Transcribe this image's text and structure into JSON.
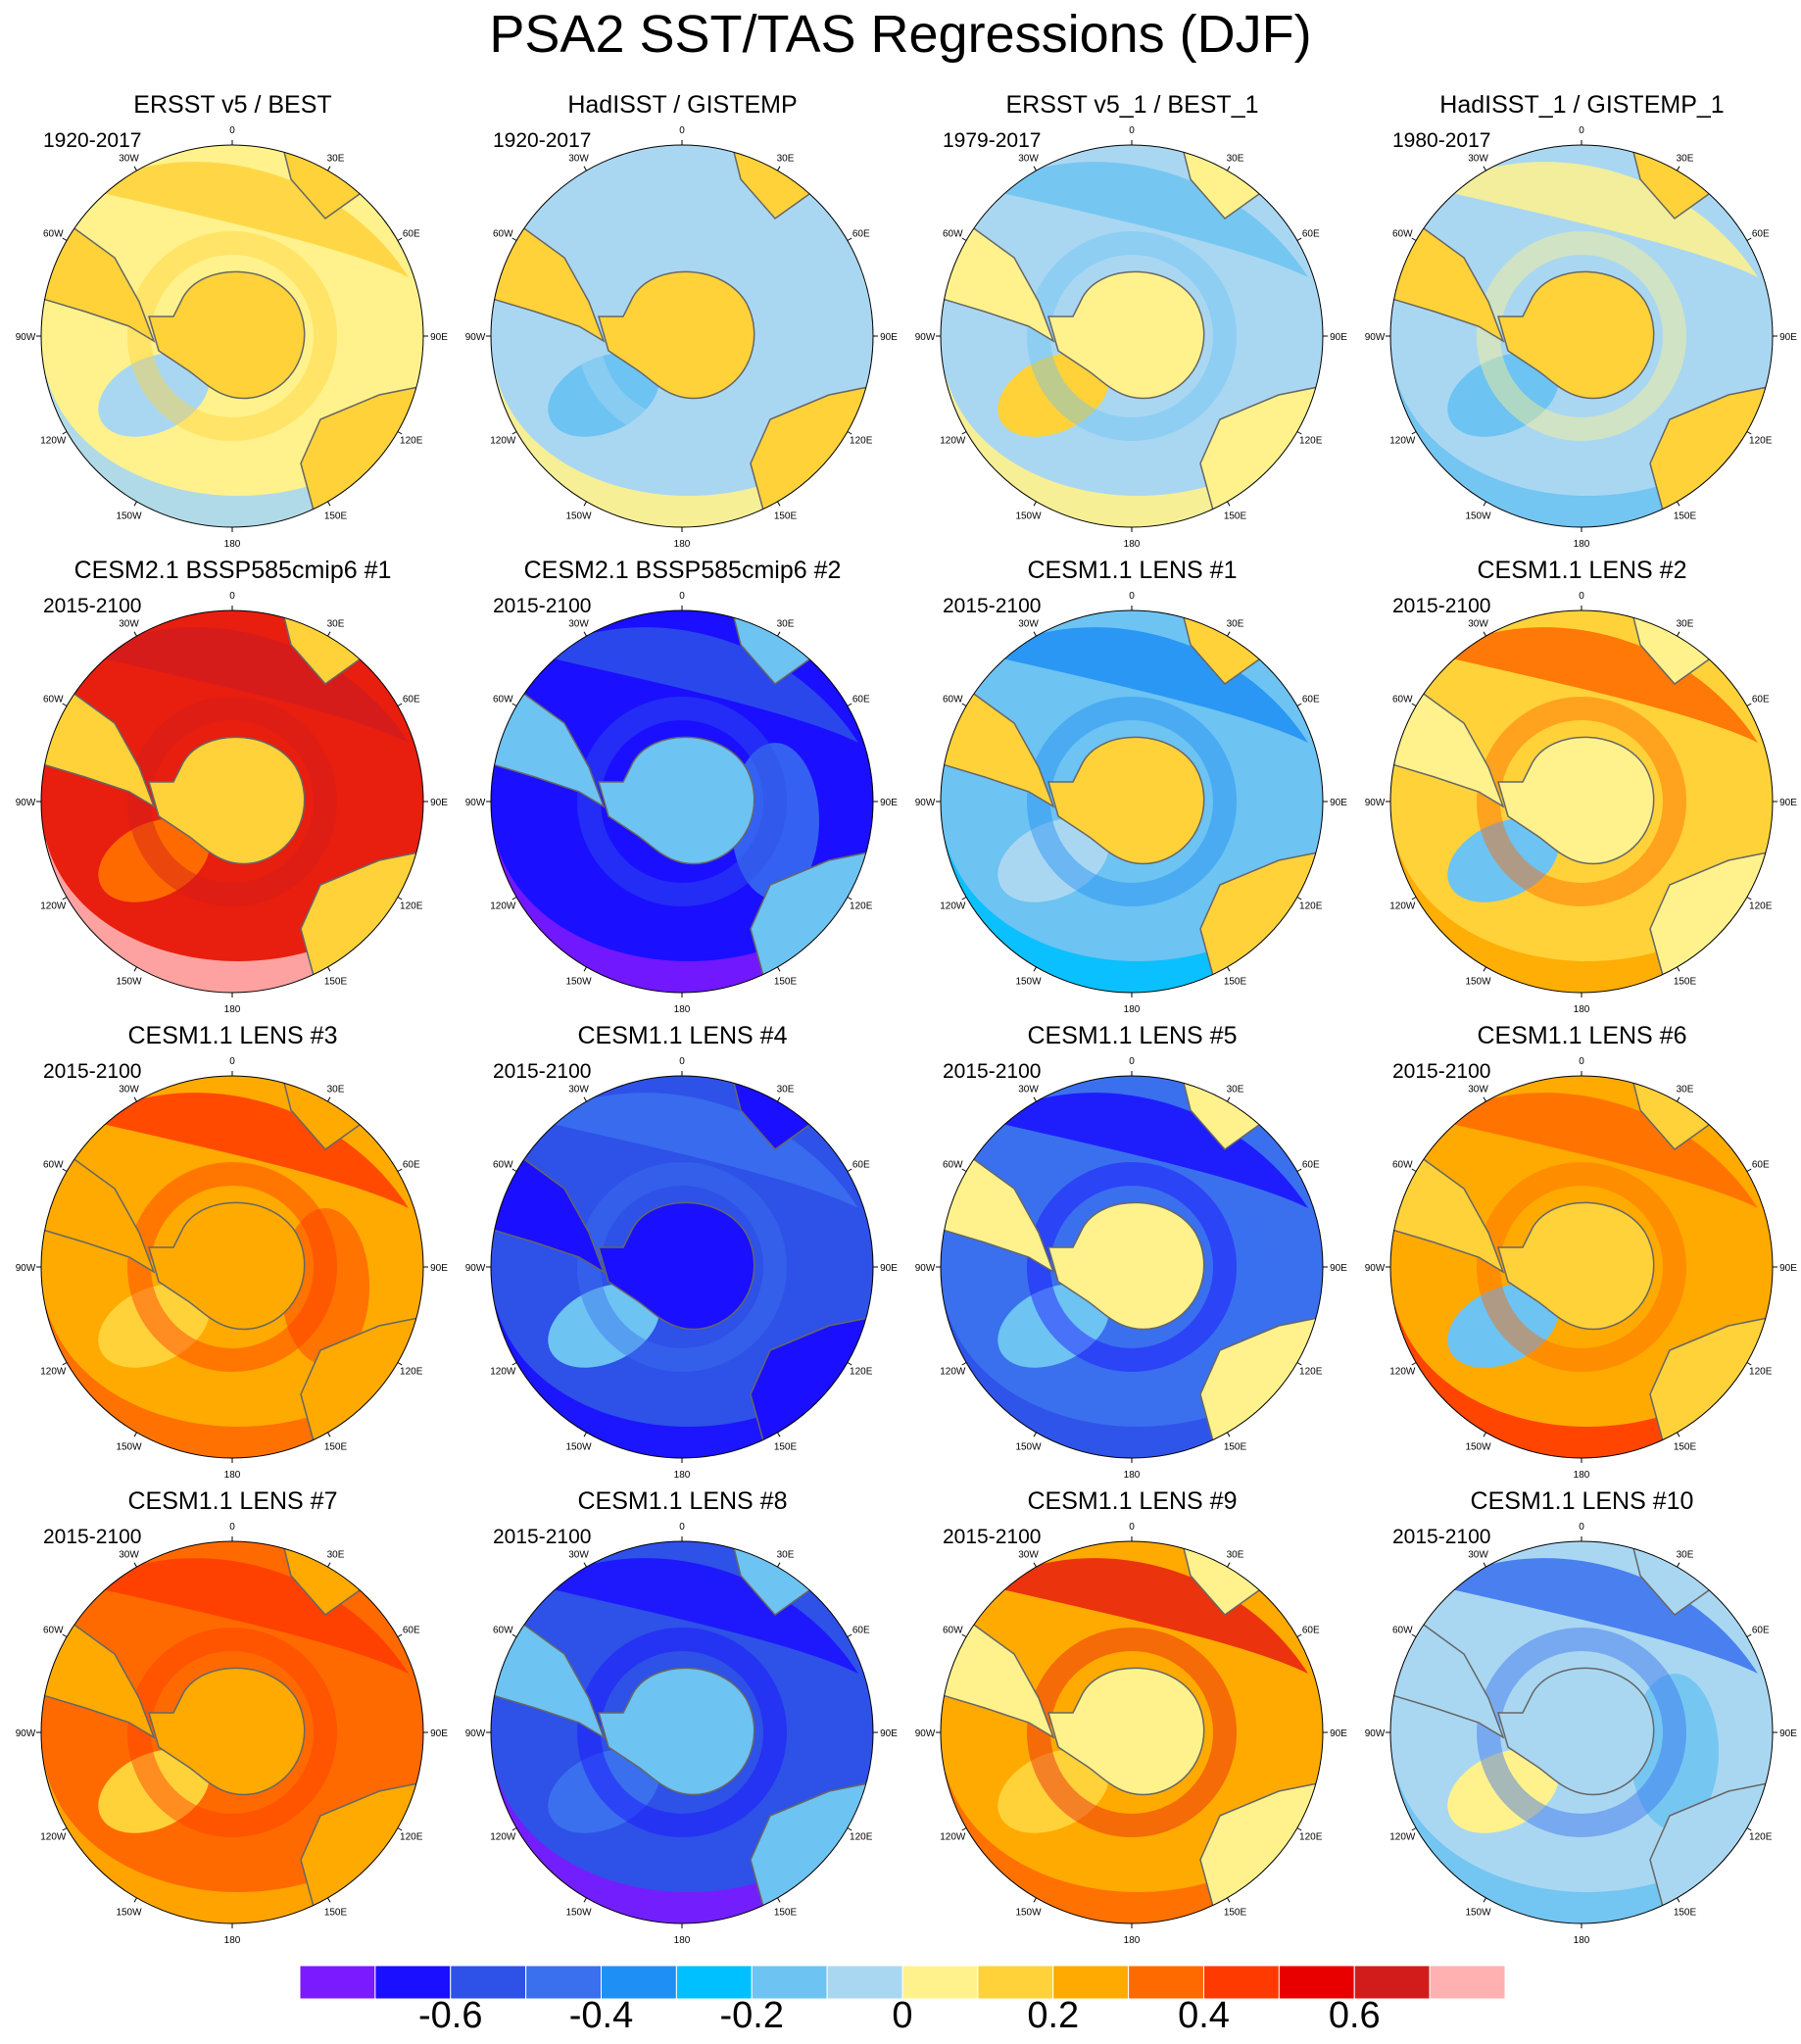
{
  "title": "PSA2 SST/TAS Regressions (DJF)",
  "lon_labels": [
    "0",
    "30E",
    "60E",
    "90E",
    "120E",
    "150E",
    "180",
    "150W",
    "120W",
    "90W",
    "60W",
    "30W"
  ],
  "panels": [
    {
      "title": "ERSST v5 / BEST",
      "years": "1920-2017",
      "colors": [
        "#fff28c",
        "#a9d7f2",
        "#ffd23a",
        "#a9d7f2",
        "#ffd23a",
        "#fff28c"
      ]
    },
    {
      "title": "HadISST / GISTEMP",
      "years": "1920-2017",
      "colors": [
        "#a9d7f2",
        "#fff28c",
        "#a9d7f2",
        "#6dc3f2",
        "#ffd23a",
        "#a9d7f2"
      ]
    },
    {
      "title": "ERSST v5_1 / BEST_1",
      "years": "1979-2017",
      "colors": [
        "#a9d7f2",
        "#fff28c",
        "#6dc3f2",
        "#ffd23a",
        "#fff28c",
        "#a9d7f2"
      ]
    },
    {
      "title": "HadISST_1 / GISTEMP_1",
      "years": "1980-2017",
      "colors": [
        "#a9d7f2",
        "#6dc3f2",
        "#fff28c",
        "#6dc3f2",
        "#ffd23a",
        "#a9d7f2"
      ]
    },
    {
      "title": "CESM2.1 BSSP585cmip6 #1",
      "years": "2015-2100",
      "colors": [
        "#e81e0f",
        "#ffb0b0",
        "#d21c1c",
        "#ff6a00",
        "#ffd23a",
        "#e81e0f"
      ]
    },
    {
      "title": "CESM2.1 BSSP585cmip6 #2",
      "years": "2015-2100",
      "colors": [
        "#1a0fff",
        "#7b1aff",
        "#2e51e8",
        "#1a0fff",
        "#6dc3f2",
        "#3a70ee"
      ]
    },
    {
      "title": "CESM1.1 LENS #1",
      "years": "2015-2100",
      "colors": [
        "#6dc3f2",
        "#00c0ff",
        "#1e8ff4",
        "#a9d7f2",
        "#ffd23a",
        "#6dc3f2"
      ]
    },
    {
      "title": "CESM1.1 LENS #2",
      "years": "2015-2100",
      "colors": [
        "#ffd23a",
        "#ffaa00",
        "#ff6a00",
        "#6dc3f2",
        "#fff28c",
        "#ffd23a"
      ]
    },
    {
      "title": "CESM1.1 LENS #3",
      "years": "2015-2100",
      "colors": [
        "#ffaa00",
        "#ff6a00",
        "#ff3a00",
        "#ffd23a",
        "#ffaa00",
        "#ff6a00"
      ]
    },
    {
      "title": "CESM1.1 LENS #4",
      "years": "2015-2100",
      "colors": [
        "#2e51e8",
        "#1a0fff",
        "#3a70ee",
        "#6dc3f2",
        "#1a0fff",
        "#2e51e8"
      ]
    },
    {
      "title": "CESM1.1 LENS #5",
      "years": "2015-2100",
      "colors": [
        "#3a70ee",
        "#2e51e8",
        "#1a0fff",
        "#6dc3f2",
        "#fff28c",
        "#3a70ee"
      ]
    },
    {
      "title": "CESM1.1 LENS #6",
      "years": "2015-2100",
      "colors": [
        "#ffaa00",
        "#ff3a00",
        "#ff6a00",
        "#6dc3f2",
        "#ffd23a",
        "#ffaa00"
      ]
    },
    {
      "title": "CESM1.1 LENS #7",
      "years": "2015-2100",
      "colors": [
        "#ff6a00",
        "#ffaa00",
        "#ff3a00",
        "#ffd23a",
        "#ffaa00",
        "#ff6a00"
      ]
    },
    {
      "title": "CESM1.1 LENS #8",
      "years": "2015-2100",
      "colors": [
        "#2e51e8",
        "#7b1aff",
        "#1a0fff",
        "#3a70ee",
        "#6dc3f2",
        "#2e51e8"
      ]
    },
    {
      "title": "CESM1.1 LENS #9",
      "years": "2015-2100",
      "colors": [
        "#ffaa00",
        "#ff6a00",
        "#e81e0f",
        "#ffd23a",
        "#fff28c",
        "#ffaa00"
      ]
    },
    {
      "title": "CESM1.1 LENS #10",
      "years": "2015-2100",
      "colors": [
        "#a9d7f2",
        "#6dc3f2",
        "#3a70ee",
        "#fff28c",
        "#a9d7f2",
        "#6dc3f2"
      ]
    }
  ],
  "colorbar": {
    "colors": [
      "#7b1aff",
      "#1a0fff",
      "#2e51e8",
      "#3a70ee",
      "#1e8ff4",
      "#00c0ff",
      "#6dc3f2",
      "#a9d7f2",
      "#fff28c",
      "#ffd23a",
      "#ffaa00",
      "#ff6a00",
      "#ff3a00",
      "#e80000",
      "#d21c1c",
      "#ffb0b0"
    ],
    "labels": [
      {
        "value": "-0.6",
        "index": 2
      },
      {
        "value": "-0.4",
        "index": 4
      },
      {
        "value": "-0.2",
        "index": 6
      },
      {
        "value": "0",
        "index": 8
      },
      {
        "value": "0.2",
        "index": 10
      },
      {
        "value": "0.4",
        "index": 12
      },
      {
        "value": "0.6",
        "index": 14
      }
    ]
  }
}
